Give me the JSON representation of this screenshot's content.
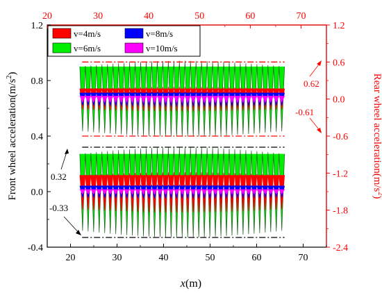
{
  "chart_data": {
    "type": "line",
    "x_bottom": {
      "label_var": "x",
      "label_unit": "(m)",
      "range": [
        15,
        75
      ],
      "ticks": [
        20,
        30,
        40,
        50,
        60,
        70
      ]
    },
    "x_top": {
      "range": [
        20,
        75
      ],
      "ticks": [
        20,
        30,
        40,
        50,
        60,
        70
      ],
      "color": "#ff0000"
    },
    "y_left": {
      "label": "Front wheel acceleration(m/s",
      "label_sup": "2",
      "label_end": ")",
      "range": [
        -0.4,
        1.2
      ],
      "ticks": [
        "-0.4",
        "0.0",
        "0.4",
        "0.8",
        "1.2"
      ],
      "tick_values": [
        -0.4,
        0.0,
        0.4,
        0.8,
        1.2
      ]
    },
    "y_right": {
      "label": "Rear wheel acceleration(m/s",
      "label_sup": "2",
      "label_end": ")",
      "range": [
        -2.4,
        1.2
      ],
      "ticks": [
        "-2.4",
        "-1.8",
        "-1.2",
        "-0.6",
        "0.0",
        "0.6",
        "1.2"
      ],
      "tick_values": [
        -2.4,
        -1.8,
        -1.2,
        -0.6,
        0.0,
        0.6,
        1.2
      ],
      "color": "#ff0000"
    },
    "legend": {
      "placement": "top-left",
      "entries": [
        {
          "label": "v=4m/s",
          "color": "#ff0000"
        },
        {
          "label": "v=8m/s",
          "color": "#0000ff"
        },
        {
          "label": "v=6m/s",
          "color": "#00ee00"
        },
        {
          "label": "v=10m/s",
          "color": "#ff00ff"
        }
      ]
    },
    "front_wheel": {
      "x_range": [
        22,
        66
      ],
      "cycles": 37,
      "series": [
        {
          "name": "v=6m/s",
          "color": "#00ee00",
          "max": 0.32,
          "min": -0.33
        },
        {
          "name": "v=4m/s",
          "color": "#ff0000",
          "max": 0.14,
          "min": -0.15
        },
        {
          "name": "v=8m/s",
          "color": "#0000ff",
          "max": 0.05,
          "min": -0.05
        },
        {
          "name": "v=10m/s",
          "color": "#ff00ff",
          "max": 0.02,
          "min": -0.02
        }
      ],
      "reference_lines": [
        0.32,
        -0.33
      ]
    },
    "rear_wheel": {
      "x_range": [
        22,
        66
      ],
      "cycles": 37,
      "series": [
        {
          "name": "v=6m/s",
          "color": "#00ee00",
          "max": 0.62,
          "min": -0.61
        },
        {
          "name": "v=4m/s",
          "color": "#ff0000",
          "max": 0.2,
          "min": -0.2
        },
        {
          "name": "v=8m/s",
          "color": "#0000ff",
          "max": 0.12,
          "min": -0.12
        },
        {
          "name": "v=10m/s",
          "color": "#ff00ff",
          "max": 0.06,
          "min": -0.06
        }
      ],
      "reference_lines": [
        0.6,
        -0.6
      ]
    },
    "annotations": {
      "front_max": "0.32",
      "front_min": "-0.33",
      "rear_max": "0.62",
      "rear_min": "-0.61"
    },
    "grid": false
  }
}
